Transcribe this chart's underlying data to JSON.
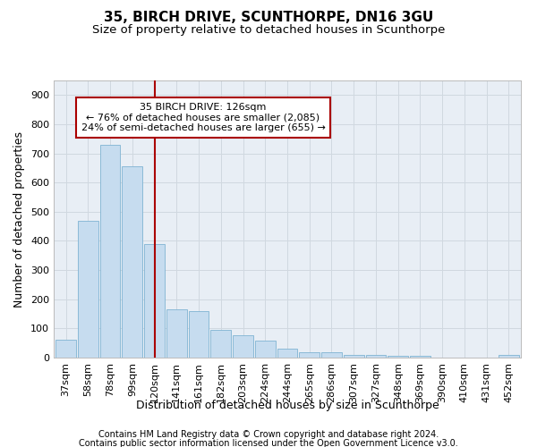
{
  "title1": "35, BIRCH DRIVE, SCUNTHORPE, DN16 3GU",
  "title2": "Size of property relative to detached houses in Scunthorpe",
  "xlabel": "Distribution of detached houses by size in Scunthorpe",
  "ylabel": "Number of detached properties",
  "footnote1": "Contains HM Land Registry data © Crown copyright and database right 2024.",
  "footnote2": "Contains public sector information licensed under the Open Government Licence v3.0.",
  "categories": [
    "37sqm",
    "58sqm",
    "78sqm",
    "99sqm",
    "120sqm",
    "141sqm",
    "161sqm",
    "182sqm",
    "203sqm",
    "224sqm",
    "244sqm",
    "265sqm",
    "286sqm",
    "307sqm",
    "327sqm",
    "348sqm",
    "369sqm",
    "390sqm",
    "410sqm",
    "431sqm",
    "452sqm"
  ],
  "values": [
    62,
    470,
    730,
    655,
    390,
    165,
    160,
    95,
    78,
    58,
    30,
    18,
    17,
    10,
    8,
    5,
    5,
    0,
    0,
    0,
    8
  ],
  "bar_color": "#c6dcef",
  "bar_edge_color": "#7fb3d3",
  "vline_x_index": 4,
  "vline_color": "#aa0000",
  "annotation_text": "35 BIRCH DRIVE: 126sqm\n← 76% of detached houses are smaller (2,085)\n24% of semi-detached houses are larger (655) →",
  "annotation_box_color": "#ffffff",
  "annotation_box_edge": "#aa0000",
  "ylim": [
    0,
    950
  ],
  "yticks": [
    0,
    100,
    200,
    300,
    400,
    500,
    600,
    700,
    800,
    900
  ],
  "grid_color": "#d0d8e0",
  "bg_color": "#e8eef5",
  "title_fontsize": 11,
  "subtitle_fontsize": 9.5,
  "axis_label_fontsize": 9,
  "tick_fontsize": 8,
  "footnote_fontsize": 7
}
